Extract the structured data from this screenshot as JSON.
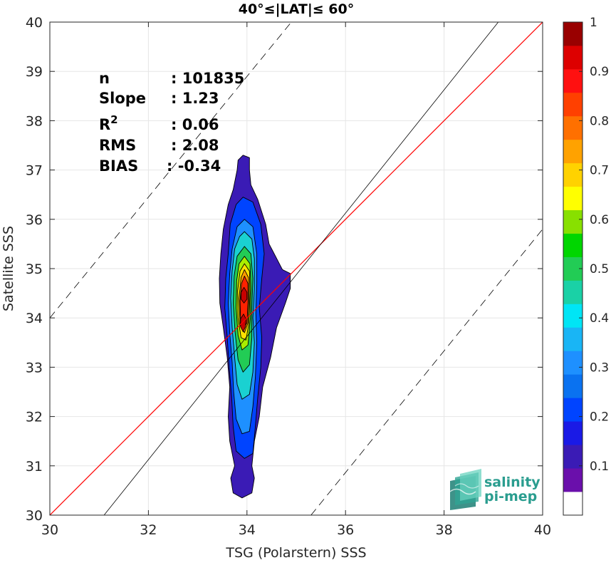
{
  "chart_data": {
    "type": "contour",
    "title": "40°≤|LAT|≤ 60°",
    "xlabel": "TSG (Polarstern) SSS",
    "ylabel": "Satellite SSS",
    "xlim": [
      30,
      40
    ],
    "ylim": [
      30,
      40
    ],
    "xticks": [
      "30",
      "32",
      "34",
      "36",
      "38",
      "40"
    ],
    "yticks": [
      "30",
      "31",
      "32",
      "33",
      "34",
      "35",
      "36",
      "37",
      "38",
      "39",
      "40"
    ],
    "grid": true,
    "stats": [
      {
        "label": "n",
        "value": ": 101835"
      },
      {
        "label": "Slope",
        "value": ": 1.23"
      },
      {
        "label": "R",
        "sup": "2",
        "value": ": 0.06"
      },
      {
        "label": "RMS",
        "value": ": 2.08"
      },
      {
        "label": "BIAS",
        "value": ": -0.34"
      }
    ],
    "reference_lines": [
      {
        "role": "one-to-one",
        "color": "#ff0000",
        "style": "solid",
        "points": [
          [
            30,
            30
          ],
          [
            40,
            40
          ]
        ]
      },
      {
        "role": "regression",
        "color": "#000000",
        "style": "solid",
        "points": [
          [
            31.1,
            30
          ],
          [
            39.1,
            40
          ]
        ]
      },
      {
        "role": "upper-bound",
        "color": "#000000",
        "style": "dashed",
        "points": [
          [
            30,
            34
          ],
          [
            34.9,
            40
          ]
        ]
      },
      {
        "role": "lower-bound",
        "color": "#000000",
        "style": "dashed",
        "points": [
          [
            35.3,
            30
          ],
          [
            40,
            35.8
          ]
        ]
      }
    ],
    "contours": [
      {
        "level": 0.05,
        "color": "#3a1bb5",
        "points": [
          [
            33.92,
            37.3
          ],
          [
            34.05,
            37.25
          ],
          [
            34.05,
            37.0
          ],
          [
            34.08,
            36.7
          ],
          [
            34.22,
            36.4
          ],
          [
            34.38,
            35.9
          ],
          [
            34.45,
            35.5
          ],
          [
            34.72,
            34.98
          ],
          [
            34.88,
            34.9
          ],
          [
            34.88,
            34.6
          ],
          [
            34.78,
            34.3
          ],
          [
            34.6,
            33.8
          ],
          [
            34.48,
            33.2
          ],
          [
            34.32,
            32.6
          ],
          [
            34.25,
            32.0
          ],
          [
            34.15,
            31.5
          ],
          [
            34.1,
            31.0
          ],
          [
            34.15,
            30.75
          ],
          [
            34.1,
            30.45
          ],
          [
            33.9,
            30.35
          ],
          [
            33.72,
            30.45
          ],
          [
            33.67,
            30.75
          ],
          [
            33.75,
            31.0
          ],
          [
            33.65,
            31.5
          ],
          [
            33.62,
            32.0
          ],
          [
            33.65,
            32.6
          ],
          [
            33.6,
            33.2
          ],
          [
            33.52,
            33.8
          ],
          [
            33.45,
            34.3
          ],
          [
            33.44,
            34.8
          ],
          [
            33.47,
            35.3
          ],
          [
            33.52,
            35.8
          ],
          [
            33.62,
            36.3
          ],
          [
            33.72,
            36.6
          ],
          [
            33.8,
            37.0
          ],
          [
            33.82,
            37.2
          ]
        ]
      },
      {
        "level": 0.15,
        "color": "#0044ff",
        "points": [
          [
            33.92,
            36.45
          ],
          [
            34.12,
            36.35
          ],
          [
            34.28,
            35.9
          ],
          [
            34.35,
            35.3
          ],
          [
            34.3,
            34.8
          ],
          [
            34.25,
            34.2
          ],
          [
            34.3,
            33.6
          ],
          [
            34.28,
            33.0
          ],
          [
            34.22,
            32.4
          ],
          [
            34.17,
            31.8
          ],
          [
            34.12,
            31.25
          ],
          [
            33.95,
            31.15
          ],
          [
            33.78,
            31.3
          ],
          [
            33.72,
            31.8
          ],
          [
            33.69,
            32.4
          ],
          [
            33.64,
            33.0
          ],
          [
            33.6,
            33.6
          ],
          [
            33.55,
            34.2
          ],
          [
            33.57,
            34.8
          ],
          [
            33.62,
            35.3
          ],
          [
            33.66,
            35.9
          ],
          [
            33.78,
            36.3
          ]
        ]
      },
      {
        "level": 0.25,
        "color": "#1e90ff",
        "points": [
          [
            33.95,
            36.0
          ],
          [
            34.12,
            35.85
          ],
          [
            34.2,
            35.3
          ],
          [
            34.2,
            34.7
          ],
          [
            34.18,
            34.1
          ],
          [
            34.2,
            33.5
          ],
          [
            34.17,
            32.8
          ],
          [
            34.12,
            32.2
          ],
          [
            34.05,
            31.7
          ],
          [
            33.9,
            31.65
          ],
          [
            33.78,
            31.95
          ],
          [
            33.73,
            32.5
          ],
          [
            33.7,
            33.1
          ],
          [
            33.65,
            33.7
          ],
          [
            33.62,
            34.3
          ],
          [
            33.65,
            34.9
          ],
          [
            33.7,
            35.4
          ],
          [
            33.8,
            35.85
          ]
        ]
      },
      {
        "level": 0.35,
        "color": "#1ad1d1",
        "points": [
          [
            33.95,
            35.75
          ],
          [
            34.1,
            35.6
          ],
          [
            34.15,
            35.2
          ],
          [
            34.15,
            34.6
          ],
          [
            34.12,
            34.0
          ],
          [
            34.15,
            33.5
          ],
          [
            34.12,
            32.9
          ],
          [
            34.05,
            32.45
          ],
          [
            33.9,
            32.35
          ],
          [
            33.8,
            32.65
          ],
          [
            33.75,
            33.2
          ],
          [
            33.7,
            33.8
          ],
          [
            33.67,
            34.4
          ],
          [
            33.7,
            34.95
          ],
          [
            33.75,
            35.4
          ],
          [
            33.85,
            35.65
          ]
        ]
      },
      {
        "level": 0.45,
        "color": "#22cc55",
        "points": [
          [
            33.95,
            35.45
          ],
          [
            34.08,
            35.3
          ],
          [
            34.12,
            34.8
          ],
          [
            34.1,
            34.2
          ],
          [
            34.1,
            33.6
          ],
          [
            34.05,
            33.05
          ],
          [
            33.92,
            32.9
          ],
          [
            33.82,
            33.15
          ],
          [
            33.76,
            33.7
          ],
          [
            33.72,
            34.3
          ],
          [
            33.74,
            34.85
          ],
          [
            33.8,
            35.25
          ]
        ]
      },
      {
        "level": 0.55,
        "color": "#aaee00",
        "points": [
          [
            33.95,
            35.25
          ],
          [
            34.06,
            35.1
          ],
          [
            34.08,
            34.6
          ],
          [
            34.07,
            34.0
          ],
          [
            34.02,
            33.45
          ],
          [
            33.9,
            33.35
          ],
          [
            33.82,
            33.65
          ],
          [
            33.78,
            34.2
          ],
          [
            33.79,
            34.75
          ],
          [
            33.84,
            35.1
          ]
        ]
      },
      {
        "level": 0.65,
        "color": "#ffe000",
        "points": [
          [
            33.95,
            35.1
          ],
          [
            34.05,
            34.95
          ],
          [
            34.06,
            34.5
          ],
          [
            34.04,
            33.9
          ],
          [
            33.98,
            33.55
          ],
          [
            33.88,
            33.6
          ],
          [
            33.82,
            34.0
          ],
          [
            33.81,
            34.55
          ],
          [
            33.86,
            34.95
          ]
        ]
      },
      {
        "level": 0.75,
        "color": "#ff9a00",
        "points": [
          [
            33.95,
            34.98
          ],
          [
            34.03,
            34.82
          ],
          [
            34.04,
            34.4
          ],
          [
            34.02,
            33.9
          ],
          [
            33.95,
            33.7
          ],
          [
            33.86,
            33.85
          ],
          [
            33.84,
            34.4
          ],
          [
            33.88,
            34.82
          ]
        ]
      },
      {
        "level": 0.85,
        "color": "#ff2200",
        "points": [
          [
            33.95,
            34.85
          ],
          [
            34.02,
            34.7
          ],
          [
            34.02,
            34.3
          ],
          [
            34.0,
            33.9
          ],
          [
            33.93,
            33.78
          ],
          [
            33.87,
            33.95
          ],
          [
            33.86,
            34.35
          ],
          [
            33.89,
            34.7
          ]
        ]
      },
      {
        "level": 0.95,
        "color": "#c80000",
        "points": [
          [
            33.94,
            34.62
          ],
          [
            34.0,
            34.52
          ],
          [
            34.0,
            34.38
          ],
          [
            33.94,
            34.3
          ],
          [
            33.88,
            34.38
          ],
          [
            33.88,
            34.52
          ]
        ]
      },
      {
        "level": 0.95,
        "color": "#c80000",
        "points": [
          [
            33.93,
            34.08
          ],
          [
            33.98,
            33.98
          ],
          [
            33.97,
            33.82
          ],
          [
            33.92,
            33.72
          ],
          [
            33.87,
            33.82
          ],
          [
            33.87,
            33.98
          ]
        ]
      }
    ],
    "colorbar": {
      "min": 0,
      "max": 1,
      "ticks": [
        "0.1",
        "0.2",
        "0.3",
        "0.4",
        "0.5",
        "0.6",
        "0.7",
        "0.8",
        "0.9",
        "1"
      ],
      "colors": [
        "#ffffff",
        "#6a0fab",
        "#3a1bb5",
        "#1a1ae6",
        "#0044ff",
        "#0a72f0",
        "#1e90ff",
        "#19b5f5",
        "#00e5f5",
        "#1ad1a6",
        "#22cc55",
        "#00d600",
        "#88e000",
        "#ffff00",
        "#ffd200",
        "#ffa200",
        "#ff7000",
        "#ff4000",
        "#ff1010",
        "#dd0000",
        "#990000"
      ]
    }
  },
  "logo": {
    "line1": "salinity",
    "line2": "pi-mep"
  }
}
